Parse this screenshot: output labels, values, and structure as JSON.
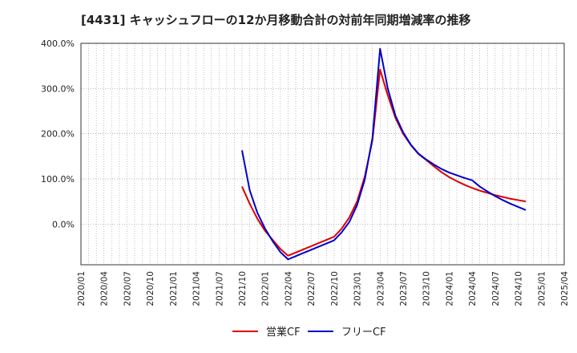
{
  "chart_data": {
    "type": "line",
    "title": "[4431]  キャッシュフローの12か月移動合計の対前年同期増減率の推移",
    "xlabel": "",
    "ylabel": "",
    "ylim": [
      -90,
      400
    ],
    "yticks": [
      0,
      100,
      200,
      300,
      400
    ],
    "ytick_labels": [
      "0.0%",
      "100.0%",
      "200.0%",
      "300.0%",
      "400.0%"
    ],
    "xlim": [
      "2020/01",
      "2025/04"
    ],
    "xtick_labels": [
      "2020/01",
      "2020/04",
      "2020/07",
      "2020/10",
      "2021/01",
      "2021/04",
      "2021/07",
      "2021/10",
      "2022/01",
      "2022/04",
      "2022/07",
      "2022/10",
      "2023/01",
      "2023/04",
      "2023/07",
      "2023/10",
      "2024/01",
      "2024/04",
      "2024/07",
      "2024/10",
      "2025/01",
      "2025/04"
    ],
    "grid": true,
    "legend_position": "bottom-center",
    "series": [
      {
        "name": "営業CF",
        "color": "#dd0000",
        "points": [
          [
            "2021/10",
            83
          ],
          [
            "2021/11",
            45
          ],
          [
            "2021/12",
            12
          ],
          [
            "2022/01",
            -15
          ],
          [
            "2022/02",
            -35
          ],
          [
            "2022/03",
            -55
          ],
          [
            "2022/04",
            -70
          ],
          [
            "2022/05",
            -63
          ],
          [
            "2022/06",
            -56
          ],
          [
            "2022/07",
            -49
          ],
          [
            "2022/08",
            -42
          ],
          [
            "2022/09",
            -35
          ],
          [
            "2022/10",
            -28
          ],
          [
            "2022/11",
            -10
          ],
          [
            "2022/12",
            15
          ],
          [
            "2023/01",
            50
          ],
          [
            "2023/02",
            105
          ],
          [
            "2023/03",
            185
          ],
          [
            "2023/04",
            342
          ],
          [
            "2023/05",
            285
          ],
          [
            "2023/06",
            235
          ],
          [
            "2023/07",
            200
          ],
          [
            "2023/08",
            175
          ],
          [
            "2023/09",
            155
          ],
          [
            "2023/10",
            142
          ],
          [
            "2023/11",
            128
          ],
          [
            "2023/12",
            115
          ],
          [
            "2024/01",
            104
          ],
          [
            "2024/02",
            95
          ],
          [
            "2024/03",
            87
          ],
          [
            "2024/04",
            80
          ],
          [
            "2024/05",
            74
          ],
          [
            "2024/06",
            69
          ],
          [
            "2024/07",
            64
          ],
          [
            "2024/08",
            60
          ],
          [
            "2024/09",
            56
          ],
          [
            "2024/10",
            53
          ],
          [
            "2024/11",
            50
          ]
        ]
      },
      {
        "name": "フリーCF",
        "color": "#0000cc",
        "points": [
          [
            "2021/10",
            163
          ],
          [
            "2021/11",
            75
          ],
          [
            "2021/12",
            25
          ],
          [
            "2022/01",
            -10
          ],
          [
            "2022/02",
            -38
          ],
          [
            "2022/03",
            -62
          ],
          [
            "2022/04",
            -78
          ],
          [
            "2022/05",
            -71
          ],
          [
            "2022/06",
            -64
          ],
          [
            "2022/07",
            -57
          ],
          [
            "2022/08",
            -50
          ],
          [
            "2022/09",
            -43
          ],
          [
            "2022/10",
            -36
          ],
          [
            "2022/11",
            -18
          ],
          [
            "2022/12",
            5
          ],
          [
            "2023/01",
            42
          ],
          [
            "2023/02",
            98
          ],
          [
            "2023/03",
            190
          ],
          [
            "2023/04",
            388
          ],
          [
            "2023/05",
            300
          ],
          [
            "2023/06",
            240
          ],
          [
            "2023/07",
            203
          ],
          [
            "2023/08",
            176
          ],
          [
            "2023/09",
            156
          ],
          [
            "2023/10",
            143
          ],
          [
            "2023/11",
            132
          ],
          [
            "2023/12",
            122
          ],
          [
            "2024/01",
            114
          ],
          [
            "2024/02",
            108
          ],
          [
            "2024/03",
            102
          ],
          [
            "2024/04",
            97
          ],
          [
            "2024/05",
            83
          ],
          [
            "2024/06",
            72
          ],
          [
            "2024/07",
            62
          ],
          [
            "2024/08",
            53
          ],
          [
            "2024/09",
            45
          ],
          [
            "2024/10",
            38
          ],
          [
            "2024/11",
            31
          ]
        ]
      }
    ]
  }
}
